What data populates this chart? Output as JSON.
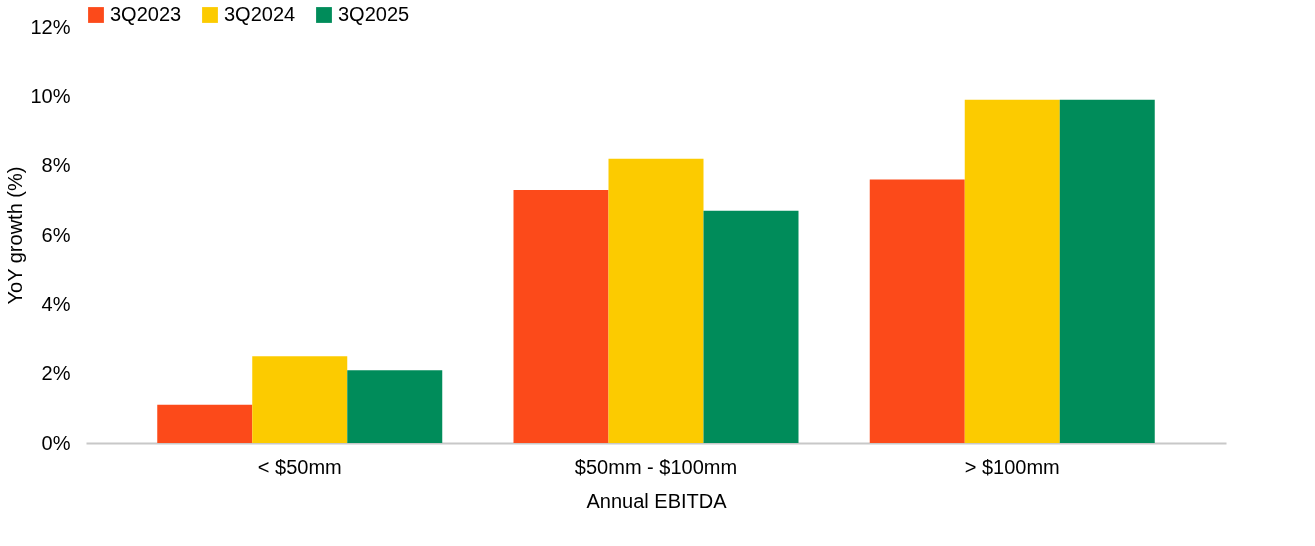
{
  "chart_data": {
    "type": "bar",
    "xlabel": "Annual EBITDA",
    "ylabel": "YoY growth (%)",
    "categories": [
      "< $50mm",
      "$50mm - $100mm",
      "> $100mm"
    ],
    "series": [
      {
        "name": "3Q2023",
        "color": "#fc4a1a",
        "values": [
          1.1,
          7.3,
          7.6
        ]
      },
      {
        "name": "3Q2024",
        "color": "#fccb00",
        "values": [
          2.5,
          8.2,
          9.9
        ]
      },
      {
        "name": "3Q2025",
        "color": "#008c5a",
        "values": [
          2.1,
          6.7,
          9.9
        ]
      }
    ],
    "ylim": [
      0,
      12
    ],
    "yticks": [
      {
        "value": 0,
        "label": "0%"
      },
      {
        "value": 2,
        "label": "2%"
      },
      {
        "value": 4,
        "label": "4%"
      },
      {
        "value": 6,
        "label": "6%"
      },
      {
        "value": 8,
        "label": "8%"
      },
      {
        "value": 10,
        "label": "10%"
      },
      {
        "value": 12,
        "label": "12%"
      }
    ],
    "grid": false,
    "legend": "top"
  }
}
